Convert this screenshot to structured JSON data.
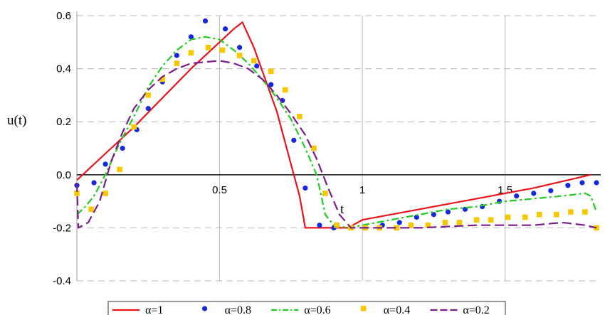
{
  "chart_data": {
    "type": "line",
    "title": "",
    "xlabel": "t",
    "ylabel": "u(t)",
    "xlim": [
      0,
      1.82
    ],
    "ylim": [
      -0.4,
      0.6
    ],
    "x_ticks": [
      {
        "value": 0.5,
        "label": "0.5"
      },
      {
        "value": 1,
        "label": "1"
      },
      {
        "value": 1.5,
        "label": "1.5"
      }
    ],
    "y_ticks": [
      {
        "value": 0.6,
        "label": "0.6"
      },
      {
        "value": 0.4,
        "label": "0.4"
      },
      {
        "value": 0.2,
        "label": "0.2"
      },
      {
        "value": 0.0,
        "label": "0.0"
      },
      {
        "value": -0.2,
        "label": "-0.2"
      },
      {
        "value": -0.4,
        "label": "-0.4"
      }
    ],
    "grid": true,
    "legend_position": "bottom",
    "series": [
      {
        "name": "α=1",
        "color": "#e8141c",
        "style": "solid",
        "points": [
          [
            0,
            -0.02
          ],
          [
            0.1,
            0.08
          ],
          [
            0.2,
            0.18
          ],
          [
            0.3,
            0.29
          ],
          [
            0.4,
            0.4
          ],
          [
            0.5,
            0.5
          ],
          [
            0.55,
            0.55
          ],
          [
            0.58,
            0.575
          ],
          [
            0.62,
            0.48
          ],
          [
            0.66,
            0.36
          ],
          [
            0.7,
            0.24
          ],
          [
            0.74,
            0.08
          ],
          [
            0.78,
            -0.08
          ],
          [
            0.8,
            -0.2
          ],
          [
            0.87,
            -0.2
          ],
          [
            0.95,
            -0.2
          ],
          [
            1.0,
            -0.17
          ],
          [
            1.2,
            -0.13
          ],
          [
            1.4,
            -0.09
          ],
          [
            1.6,
            -0.05
          ],
          [
            1.8,
            0.0
          ]
        ]
      },
      {
        "name": "α=0.8",
        "color": "#1428e0",
        "style": "dots",
        "points": [
          [
            0,
            -0.04
          ],
          [
            0.06,
            -0.03
          ],
          [
            0.1,
            0.04
          ],
          [
            0.16,
            0.1
          ],
          [
            0.21,
            0.17
          ],
          [
            0.25,
            0.25
          ],
          [
            0.3,
            0.35
          ],
          [
            0.35,
            0.45
          ],
          [
            0.4,
            0.52
          ],
          [
            0.45,
            0.58
          ],
          [
            0.52,
            0.55
          ],
          [
            0.57,
            0.48
          ],
          [
            0.63,
            0.41
          ],
          [
            0.68,
            0.34
          ],
          [
            0.72,
            0.28
          ],
          [
            0.76,
            0.13
          ],
          [
            0.8,
            -0.05
          ],
          [
            0.85,
            -0.19
          ],
          [
            0.9,
            -0.2
          ],
          [
            0.96,
            -0.2
          ],
          [
            1.01,
            -0.2
          ],
          [
            1.07,
            -0.19
          ],
          [
            1.13,
            -0.18
          ],
          [
            1.19,
            -0.16
          ],
          [
            1.25,
            -0.15
          ],
          [
            1.3,
            -0.14
          ],
          [
            1.36,
            -0.13
          ],
          [
            1.42,
            -0.12
          ],
          [
            1.48,
            -0.1
          ],
          [
            1.54,
            -0.08
          ],
          [
            1.6,
            -0.07
          ],
          [
            1.66,
            -0.06
          ],
          [
            1.72,
            -0.04
          ],
          [
            1.77,
            -0.03
          ],
          [
            1.82,
            -0.03
          ]
        ]
      },
      {
        "name": "α=0.6",
        "color": "#22cc22",
        "style": "dashdot",
        "points": [
          [
            0,
            -0.15
          ],
          [
            0.03,
            -0.12
          ],
          [
            0.06,
            -0.08
          ],
          [
            0.1,
            0.0
          ],
          [
            0.15,
            0.12
          ],
          [
            0.2,
            0.22
          ],
          [
            0.25,
            0.33
          ],
          [
            0.3,
            0.41
          ],
          [
            0.35,
            0.47
          ],
          [
            0.4,
            0.51
          ],
          [
            0.45,
            0.52
          ],
          [
            0.5,
            0.51
          ],
          [
            0.55,
            0.47
          ],
          [
            0.6,
            0.42
          ],
          [
            0.65,
            0.36
          ],
          [
            0.7,
            0.29
          ],
          [
            0.75,
            0.21
          ],
          [
            0.8,
            0.1
          ],
          [
            0.84,
            0.0
          ],
          [
            0.87,
            -0.15
          ],
          [
            0.9,
            -0.19
          ],
          [
            0.95,
            -0.2
          ],
          [
            1.0,
            -0.19
          ],
          [
            1.1,
            -0.17
          ],
          [
            1.2,
            -0.15
          ],
          [
            1.3,
            -0.13
          ],
          [
            1.4,
            -0.12
          ],
          [
            1.5,
            -0.1
          ],
          [
            1.6,
            -0.09
          ],
          [
            1.7,
            -0.08
          ],
          [
            1.78,
            -0.07
          ],
          [
            1.8,
            -0.08
          ],
          [
            1.82,
            -0.14
          ]
        ]
      },
      {
        "name": "α=0.4",
        "color": "#f5c800",
        "style": "squares",
        "points": [
          [
            0,
            -0.07
          ],
          [
            0.05,
            -0.13
          ],
          [
            0.1,
            -0.07
          ],
          [
            0.15,
            0.02
          ],
          [
            0.2,
            0.18
          ],
          [
            0.25,
            0.3
          ],
          [
            0.3,
            0.36
          ],
          [
            0.35,
            0.42
          ],
          [
            0.4,
            0.46
          ],
          [
            0.46,
            0.48
          ],
          [
            0.51,
            0.47
          ],
          [
            0.57,
            0.45
          ],
          [
            0.62,
            0.43
          ],
          [
            0.68,
            0.39
          ],
          [
            0.73,
            0.32
          ],
          [
            0.78,
            0.22
          ],
          [
            0.83,
            0.1
          ],
          [
            0.87,
            -0.07
          ],
          [
            0.91,
            -0.19
          ],
          [
            0.96,
            -0.2
          ],
          [
            1.01,
            -0.2
          ],
          [
            1.06,
            -0.2
          ],
          [
            1.12,
            -0.2
          ],
          [
            1.17,
            -0.19
          ],
          [
            1.23,
            -0.19
          ],
          [
            1.29,
            -0.18
          ],
          [
            1.34,
            -0.18
          ],
          [
            1.4,
            -0.17
          ],
          [
            1.45,
            -0.17
          ],
          [
            1.51,
            -0.16
          ],
          [
            1.57,
            -0.16
          ],
          [
            1.62,
            -0.15
          ],
          [
            1.68,
            -0.15
          ],
          [
            1.73,
            -0.14
          ],
          [
            1.78,
            -0.14
          ],
          [
            1.82,
            -0.2
          ]
        ]
      },
      {
        "name": "α=0.2",
        "color": "#7a1c8a",
        "style": "dashed",
        "points": [
          [
            0,
            -0.03
          ],
          [
            0.005,
            -0.2
          ],
          [
            0.04,
            -0.18
          ],
          [
            0.08,
            -0.1
          ],
          [
            0.12,
            0.05
          ],
          [
            0.16,
            0.16
          ],
          [
            0.2,
            0.25
          ],
          [
            0.25,
            0.32
          ],
          [
            0.3,
            0.37
          ],
          [
            0.35,
            0.4
          ],
          [
            0.4,
            0.42
          ],
          [
            0.5,
            0.43
          ],
          [
            0.55,
            0.42
          ],
          [
            0.6,
            0.4
          ],
          [
            0.65,
            0.36
          ],
          [
            0.7,
            0.3
          ],
          [
            0.75,
            0.23
          ],
          [
            0.8,
            0.15
          ],
          [
            0.84,
            0.06
          ],
          [
            0.88,
            -0.05
          ],
          [
            0.92,
            -0.15
          ],
          [
            0.96,
            -0.2
          ],
          [
            1.0,
            -0.2
          ],
          [
            1.2,
            -0.2
          ],
          [
            1.4,
            -0.19
          ],
          [
            1.6,
            -0.19
          ],
          [
            1.7,
            -0.18
          ],
          [
            1.78,
            -0.19
          ],
          [
            1.82,
            -0.2
          ]
        ]
      }
    ]
  }
}
